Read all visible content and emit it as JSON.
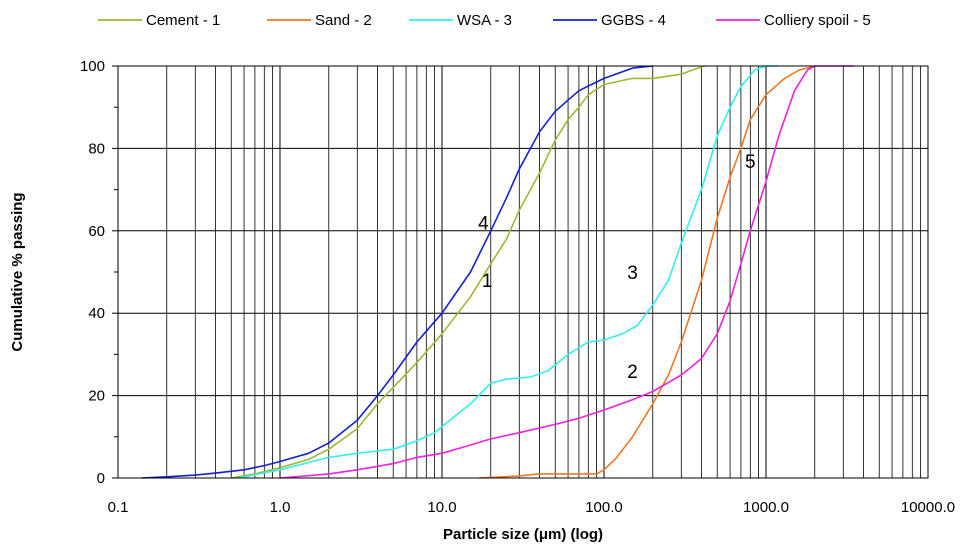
{
  "chart_data": {
    "type": "line",
    "title": "",
    "xlabel": "Particle size (μm) (log)",
    "ylabel": "Cumulative % passing",
    "x_scale": "log",
    "xlim": [
      0.1,
      10000
    ],
    "ylim": [
      0,
      100
    ],
    "x_tick_labels": [
      "0.1",
      "1.0",
      "10.0",
      "100.0",
      "1000.0",
      "10000.0"
    ],
    "y_tick_labels": [
      "0",
      "20",
      "40",
      "60",
      "80",
      "100"
    ],
    "grid": true,
    "legend_position": "top",
    "curve_labels": [
      "1",
      "2",
      "3",
      "4",
      "5"
    ],
    "series": [
      {
        "name": "Cement - 1",
        "label": "1",
        "color": "#99bb33",
        "points": [
          [
            0.5,
            0
          ],
          [
            0.7,
            1
          ],
          [
            1.0,
            2.5
          ],
          [
            1.5,
            4.5
          ],
          [
            2.0,
            7
          ],
          [
            3.0,
            12
          ],
          [
            4.0,
            18
          ],
          [
            5.0,
            22
          ],
          [
            7.0,
            28
          ],
          [
            10.0,
            35
          ],
          [
            15.0,
            44
          ],
          [
            20.0,
            52
          ],
          [
            25.0,
            58
          ],
          [
            30.0,
            65
          ],
          [
            40.0,
            74
          ],
          [
            50.0,
            82
          ],
          [
            60.0,
            87
          ],
          [
            70.0,
            90
          ],
          [
            80.0,
            93
          ],
          [
            100.0,
            95.5
          ],
          [
            150.0,
            97
          ],
          [
            200.0,
            97
          ],
          [
            300.0,
            98
          ],
          [
            350.0,
            99
          ],
          [
            420.0,
            100
          ]
        ]
      },
      {
        "name": "Sand - 2",
        "label": "2",
        "color": "#ee7722",
        "points": [
          [
            17.0,
            0
          ],
          [
            30.0,
            0.5
          ],
          [
            40.0,
            1
          ],
          [
            60.0,
            1
          ],
          [
            90.0,
            1
          ],
          [
            100.0,
            2
          ],
          [
            120.0,
            5
          ],
          [
            150.0,
            10
          ],
          [
            200.0,
            18
          ],
          [
            250.0,
            25
          ],
          [
            300.0,
            33
          ],
          [
            400.0,
            48
          ],
          [
            500.0,
            63
          ],
          [
            600.0,
            73
          ],
          [
            700.0,
            80
          ],
          [
            800.0,
            87
          ],
          [
            1000.0,
            93
          ],
          [
            1300.0,
            97
          ],
          [
            1600.0,
            99
          ],
          [
            2000.0,
            100
          ]
        ]
      },
      {
        "name": "WSA - 3",
        "label": "3",
        "color": "#33eeee",
        "points": [
          [
            0.55,
            0
          ],
          [
            1.0,
            2
          ],
          [
            2.0,
            5
          ],
          [
            3.0,
            6
          ],
          [
            5.0,
            7
          ],
          [
            7.0,
            9
          ],
          [
            9.0,
            11
          ],
          [
            12.0,
            15
          ],
          [
            15.0,
            18
          ],
          [
            20.0,
            23
          ],
          [
            25.0,
            24
          ],
          [
            35.0,
            24.5
          ],
          [
            45.0,
            26
          ],
          [
            60.0,
            30
          ],
          [
            80.0,
            33
          ],
          [
            100.0,
            33.5
          ],
          [
            130.0,
            35
          ],
          [
            160.0,
            37
          ],
          [
            200.0,
            42
          ],
          [
            250.0,
            48
          ],
          [
            300.0,
            57
          ],
          [
            400.0,
            70
          ],
          [
            500.0,
            83
          ],
          [
            600.0,
            90
          ],
          [
            700.0,
            95
          ],
          [
            850.0,
            99
          ],
          [
            1000.0,
            100
          ],
          [
            1200.0,
            100
          ]
        ]
      },
      {
        "name": "GGBS - 4",
        "label": "4",
        "color": "#1122cc",
        "points": [
          [
            0.14,
            0
          ],
          [
            0.2,
            0.3
          ],
          [
            0.3,
            0.7
          ],
          [
            0.4,
            1.2
          ],
          [
            0.6,
            2
          ],
          [
            0.8,
            3
          ],
          [
            1.0,
            4
          ],
          [
            1.5,
            6
          ],
          [
            2.0,
            8.5
          ],
          [
            3.0,
            14
          ],
          [
            4.0,
            20
          ],
          [
            5.0,
            25
          ],
          [
            7.0,
            33
          ],
          [
            10.0,
            40
          ],
          [
            15.0,
            50
          ],
          [
            20.0,
            60
          ],
          [
            25.0,
            68
          ],
          [
            30.0,
            75
          ],
          [
            40.0,
            84
          ],
          [
            50.0,
            89
          ],
          [
            70.0,
            94
          ],
          [
            100.0,
            97
          ],
          [
            150.0,
            99.5
          ],
          [
            200.0,
            100
          ]
        ]
      },
      {
        "name": "Colliery spoil - 5",
        "label": "5",
        "color": "#ee22dd",
        "points": [
          [
            1.0,
            0
          ],
          [
            2.0,
            1
          ],
          [
            3.0,
            2
          ],
          [
            5.0,
            3.5
          ],
          [
            7.0,
            5
          ],
          [
            10.0,
            6
          ],
          [
            15.0,
            8
          ],
          [
            20.0,
            9.5
          ],
          [
            30.0,
            11
          ],
          [
            50.0,
            13
          ],
          [
            70.0,
            14.5
          ],
          [
            100.0,
            16.5
          ],
          [
            150.0,
            19
          ],
          [
            200.0,
            21
          ],
          [
            300.0,
            25
          ],
          [
            400.0,
            29
          ],
          [
            500.0,
            35
          ],
          [
            600.0,
            43
          ],
          [
            700.0,
            52
          ],
          [
            800.0,
            60
          ],
          [
            1000.0,
            72
          ],
          [
            1200.0,
            83
          ],
          [
            1500.0,
            94
          ],
          [
            1800.0,
            99
          ],
          [
            2000.0,
            100
          ],
          [
            3500.0,
            100
          ]
        ]
      }
    ]
  }
}
